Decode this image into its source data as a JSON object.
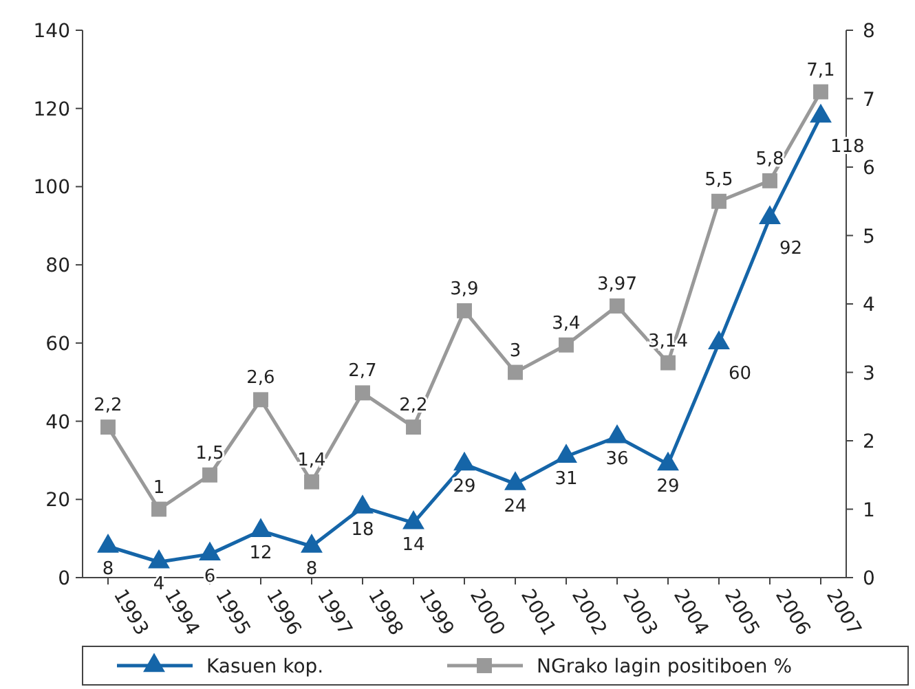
{
  "chart_data": {
    "type": "line",
    "categories": [
      "1993",
      "1994",
      "1995",
      "1996",
      "1997",
      "1998",
      "1999",
      "2000",
      "2001",
      "2002",
      "2003",
      "2004",
      "2005",
      "2006",
      "2007"
    ],
    "series": [
      {
        "name": "Kasuen kop.",
        "color": "#1565a8",
        "marker": "triangle",
        "values": [
          8,
          4,
          6,
          12,
          8,
          18,
          14,
          29,
          24,
          31,
          36,
          29,
          60,
          92,
          118
        ],
        "value_labels": [
          "8",
          "4",
          "6",
          "12",
          "8",
          "18",
          "14",
          "29",
          "24",
          "31",
          "36",
          "29",
          "60",
          "92",
          "118"
        ]
      },
      {
        "name": "NGrako lagin positiboen %",
        "color": "#999999",
        "marker": "square",
        "axis": "y2",
        "values": [
          2.2,
          1,
          1.5,
          2.6,
          1.4,
          2.7,
          2.2,
          3.9,
          3,
          3.4,
          3.97,
          3.14,
          5.5,
          5.8,
          7.1
        ],
        "value_labels": [
          "2,2",
          "1",
          "1,5",
          "2,6",
          "1,4",
          "2,7",
          "2,2",
          "3,9",
          "3",
          "3,4",
          "3,97",
          "3,14",
          "5,5",
          "5,8",
          "7,1"
        ]
      }
    ],
    "ylim": [
      0,
      140
    ],
    "yticks": [
      0,
      20,
      40,
      60,
      80,
      100,
      120,
      140
    ],
    "y2lim": [
      0,
      8
    ],
    "y2ticks": [
      0,
      1,
      2,
      3,
      4,
      5,
      6,
      7,
      8
    ],
    "legend": "bottom",
    "grid": false
  }
}
